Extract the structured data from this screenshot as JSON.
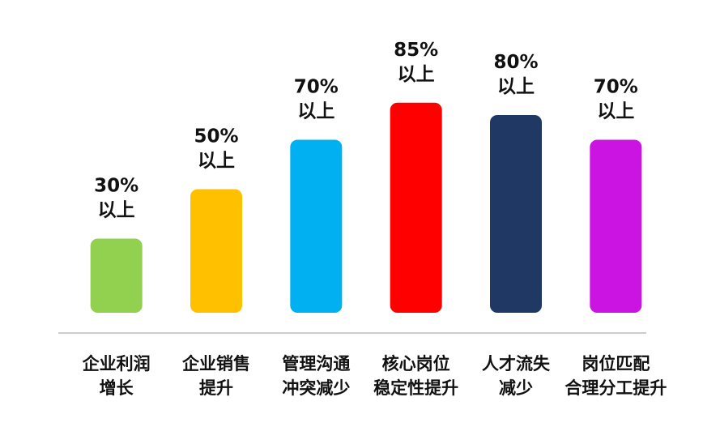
{
  "chart_data": {
    "type": "bar",
    "categories": [
      [
        "企业利润",
        "增长"
      ],
      [
        "企业销售",
        "提升"
      ],
      [
        "管理沟通",
        "冲突减少"
      ],
      [
        "核心岗位",
        "稳定性提升"
      ],
      [
        "人才流失",
        "减少"
      ],
      [
        "岗位匹配",
        "合理分工提升"
      ]
    ],
    "values": [
      30,
      50,
      70,
      85,
      80,
      70
    ],
    "value_labels": [
      [
        "30%",
        "以上"
      ],
      [
        "50%",
        "以上"
      ],
      [
        "70%",
        "以上"
      ],
      [
        "85%",
        "以上"
      ],
      [
        "80%",
        "以上"
      ],
      [
        "70%",
        "以上"
      ]
    ],
    "colors": [
      "#92D050",
      "#FFC000",
      "#00B0F0",
      "#FF0000",
      "#1F3864",
      "#CC14E2"
    ],
    "ylim": [
      0,
      100
    ],
    "grid": false,
    "legend": "none"
  }
}
